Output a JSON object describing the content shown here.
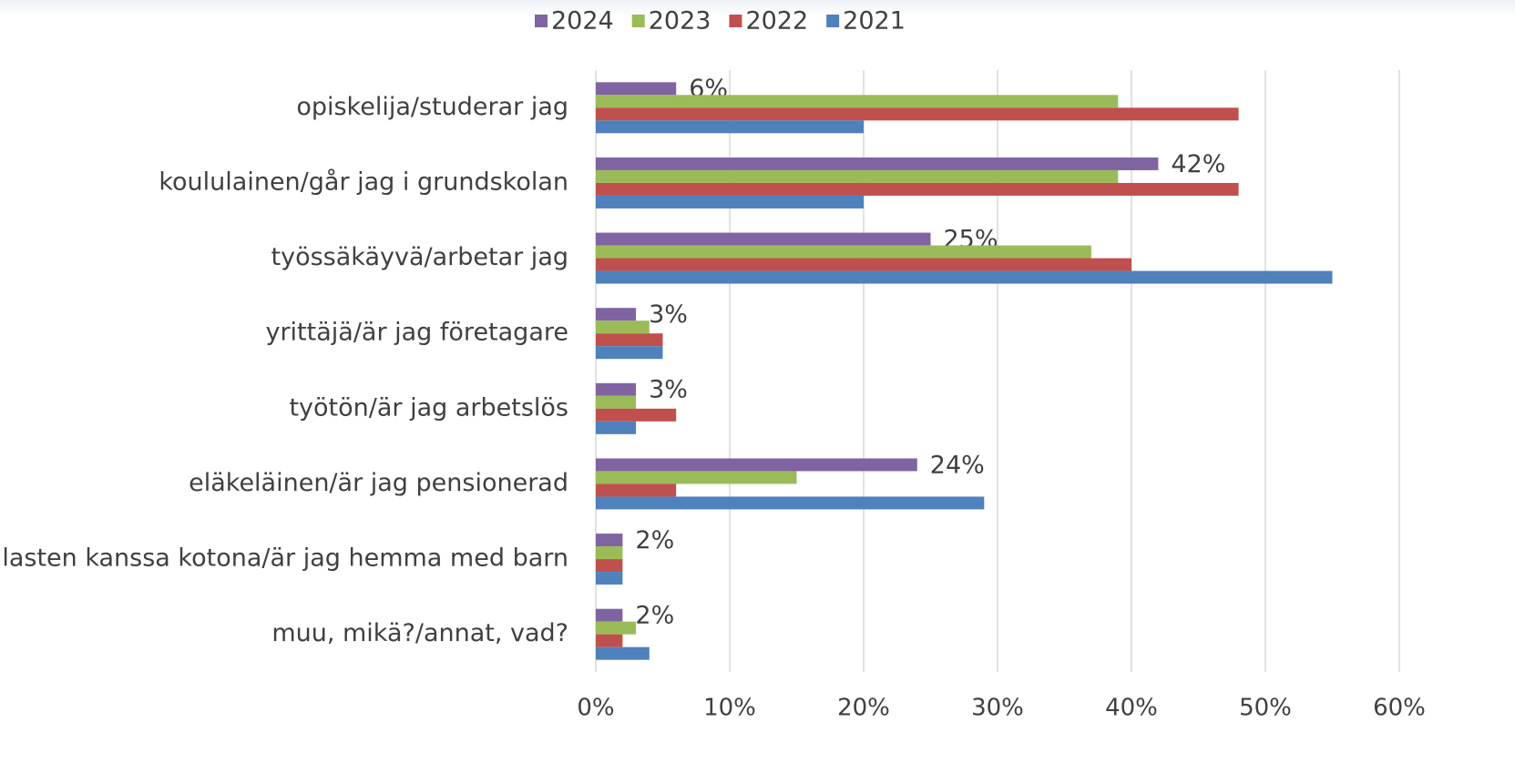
{
  "chart_data": {
    "type": "hbar",
    "categories": [
      "opiskelija/studerar jag",
      "koululainen/går jag i grundskolan",
      "työssäkäyvä/arbetar jag",
      "yrittäjä/är jag företagare",
      "työtön/är jag arbetslös",
      "eläkeläinen/är jag pensionerad",
      "lasten kanssa kotona/är jag hemma med barn",
      "muu, mikä?/annat, vad?"
    ],
    "series": [
      {
        "name": "2024",
        "color": "#8064a2",
        "values": [
          6,
          42,
          25,
          3,
          3,
          24,
          2,
          2
        ],
        "value_labels": [
          "6%",
          "42%",
          "25%",
          "3%",
          "3%",
          "24%",
          "2%",
          "2%"
        ]
      },
      {
        "name": "2023",
        "color": "#9bbb59",
        "values": [
          39,
          39,
          37,
          4,
          3,
          15,
          2,
          3
        ]
      },
      {
        "name": "2022",
        "color": "#c0504d",
        "values": [
          48,
          48,
          40,
          5,
          6,
          6,
          2,
          2
        ]
      },
      {
        "name": "2021",
        "color": "#4f81bd",
        "values": [
          20,
          20,
          55,
          5,
          3,
          29,
          2,
          4
        ]
      }
    ],
    "xlim": [
      0,
      60
    ],
    "xticks": [
      {
        "value": 0,
        "label": "0%"
      },
      {
        "value": 10,
        "label": "10%"
      },
      {
        "value": 20,
        "label": "20%"
      },
      {
        "value": 30,
        "label": "30%"
      },
      {
        "value": 40,
        "label": "40%"
      },
      {
        "value": 50,
        "label": "50%"
      },
      {
        "value": 60,
        "label": "60%"
      }
    ],
    "grid": true,
    "legend": "top"
  }
}
